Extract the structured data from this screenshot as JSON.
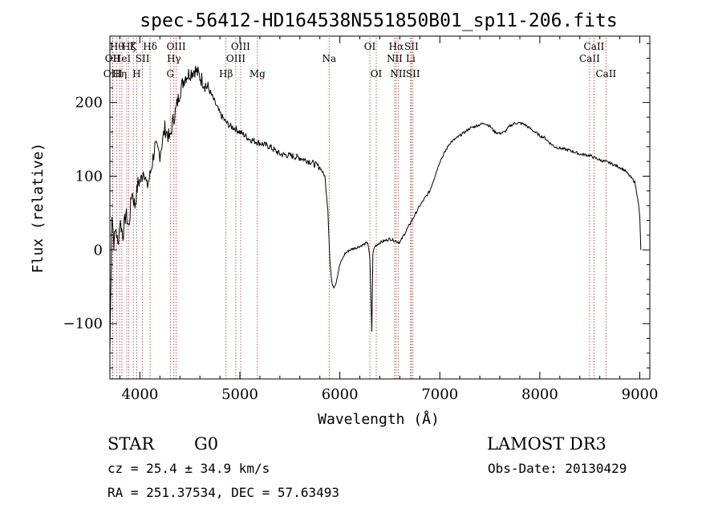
{
  "chart_data": {
    "type": "line",
    "title": "spec-56412-HD164538N551850B01_sp11-206.fits",
    "xlabel": "Wavelength (Å)",
    "ylabel": "Flux (relative)",
    "xlim": [
      3700,
      9100
    ],
    "ylim": [
      -175,
      290
    ],
    "xticks": [
      {
        "value": 4000,
        "label": "4000"
      },
      {
        "value": 5000,
        "label": "5000"
      },
      {
        "value": 6000,
        "label": "6000"
      },
      {
        "value": 7000,
        "label": "7000"
      },
      {
        "value": 8000,
        "label": "8000"
      },
      {
        "value": 9000,
        "label": "9000"
      }
    ],
    "yticks": [
      {
        "value": -100,
        "label": "−100"
      },
      {
        "value": 0,
        "label": "0"
      },
      {
        "value": 100,
        "label": "100"
      },
      {
        "value": 200,
        "label": "200"
      }
    ],
    "series": [
      {
        "color": "#000000",
        "x": [
          3700,
          3720,
          3740,
          3760,
          3780,
          3800,
          3830,
          3860,
          3890,
          3920,
          3950,
          3980,
          4010,
          4040,
          4070,
          4100,
          4150,
          4200,
          4250,
          4300,
          4330,
          4360,
          4400,
          4450,
          4500,
          4550,
          4600,
          4650,
          4700,
          4750,
          4800,
          4850,
          4900,
          4950,
          5000,
          5100,
          5200,
          5300,
          5400,
          5500,
          5600,
          5700,
          5800,
          5850,
          5880,
          5900,
          5920,
          5940,
          5960,
          6000,
          6050,
          6100,
          6200,
          6280,
          6300,
          6320,
          6330,
          6350,
          6400,
          6500,
          6600,
          6700,
          6800,
          6900,
          7000,
          7100,
          7200,
          7300,
          7400,
          7450,
          7500,
          7550,
          7600,
          7650,
          7700,
          7750,
          7800,
          7850,
          7900,
          7950,
          8000,
          8050,
          8100,
          8150,
          8200,
          8300,
          8400,
          8500,
          8600,
          8700,
          8800,
          8850,
          8900,
          8950,
          8980,
          9000,
          9010
        ],
        "y": [
          -140,
          50,
          10,
          30,
          5,
          40,
          20,
          50,
          30,
          80,
          60,
          90,
          95,
          110,
          85,
          100,
          140,
          130,
          165,
          150,
          175,
          190,
          215,
          235,
          240,
          245,
          235,
          225,
          215,
          200,
          185,
          175,
          168,
          165,
          160,
          150,
          145,
          140,
          130,
          128,
          125,
          120,
          112,
          100,
          55,
          -15,
          -45,
          -50,
          -45,
          -20,
          -5,
          0,
          5,
          10,
          -12,
          -110,
          -5,
          5,
          10,
          15,
          10,
          35,
          60,
          80,
          120,
          145,
          155,
          165,
          170,
          172,
          168,
          160,
          158,
          160,
          168,
          172,
          172,
          170,
          165,
          160,
          155,
          152,
          145,
          140,
          138,
          135,
          130,
          128,
          122,
          118,
          112,
          108,
          100,
          92,
          70,
          45,
          0
        ]
      }
    ],
    "lines": [
      {
        "wavelength": 3727,
        "label": "OII",
        "row": 2
      },
      {
        "wavelength": 3730,
        "label": "OIII",
        "row": 3
      },
      {
        "wavelength": 3770,
        "label": "Hθ",
        "row": 1
      },
      {
        "wavelength": 3798,
        "label": "Hη",
        "row": 3
      },
      {
        "wavelength": 3820,
        "label": "HeI",
        "row": 2
      },
      {
        "wavelength": 3869,
        "label": "",
        "row": 0
      },
      {
        "wavelength": 3889,
        "label": "Hζ",
        "row": 0
      },
      {
        "wavelength": 3934,
        "label": "K",
        "row": 1
      },
      {
        "wavelength": 3968,
        "label": "H",
        "row": 3
      },
      {
        "wavelength": 4026,
        "label": "SII",
        "row": 2
      },
      {
        "wavelength": 4102,
        "label": "Hδ",
        "row": 1
      },
      {
        "wavelength": 4304,
        "label": "G",
        "row": 3
      },
      {
        "wavelength": 4340,
        "label": "Hγ",
        "row": 2
      },
      {
        "wavelength": 4363,
        "label": "OIII",
        "row": 1
      },
      {
        "wavelength": 4861,
        "label": "Hβ",
        "row": 3
      },
      {
        "wavelength": 4959,
        "label": "OIII",
        "row": 2
      },
      {
        "wavelength": 5007,
        "label": "OIII",
        "row": 1
      },
      {
        "wavelength": 5175,
        "label": "Mg",
        "row": 3
      },
      {
        "wavelength": 5893,
        "label": "Na",
        "row": 2
      },
      {
        "wavelength": 6300,
        "label": "OI",
        "row": 1
      },
      {
        "wavelength": 6364,
        "label": "OI",
        "row": 3
      },
      {
        "wavelength": 6548,
        "label": "NII",
        "row": 2
      },
      {
        "wavelength": 6563,
        "label": "Hα",
        "row": 1
      },
      {
        "wavelength": 6583,
        "label": "NII",
        "row": 3
      },
      {
        "wavelength": 6708,
        "label": "Li",
        "row": 2
      },
      {
        "wavelength": 6716,
        "label": "SII",
        "row": 1
      },
      {
        "wavelength": 6731,
        "label": "SII",
        "row": 3
      },
      {
        "wavelength": 8498,
        "label": "CaII",
        "row": 2
      },
      {
        "wavelength": 8542,
        "label": "CaII",
        "row": 1
      },
      {
        "wavelength": 8662,
        "label": "CaII",
        "row": 3
      }
    ]
  },
  "footer": {
    "object_class": "STAR",
    "subclass": "G0",
    "survey": "LAMOST DR3",
    "cz": "cz = 25.4 ± 34.9 km/s",
    "obs_date": "Obs-Date: 20130429",
    "coords": "RA = 251.37534, DEC =  57.63493"
  }
}
